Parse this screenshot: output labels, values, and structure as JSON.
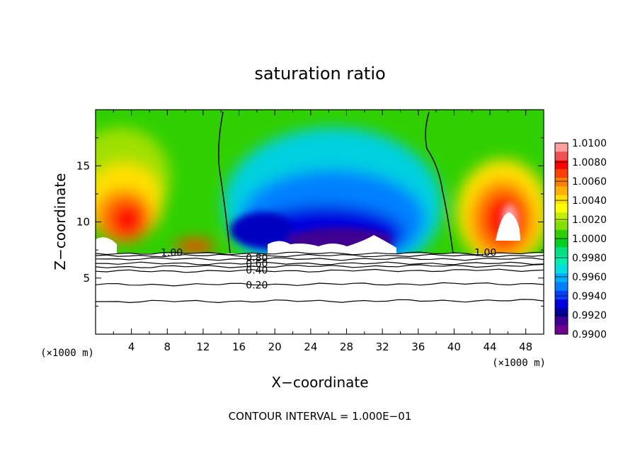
{
  "chart_data": {
    "type": "heatmap",
    "title": "saturation ratio",
    "xlabel": "X−coordinate",
    "ylabel": "Z−coordinate",
    "x_unit_label": "(×1000 m)",
    "z_unit_label": "(×1000 m)",
    "xlim": [
      0,
      50
    ],
    "ylim": [
      0,
      20
    ],
    "x_ticks": [
      "4",
      "8",
      "12",
      "16",
      "20",
      "24",
      "28",
      "32",
      "36",
      "40",
      "44",
      "48"
    ],
    "y_ticks": [
      "5",
      "10",
      "15"
    ],
    "footer": "CONTOUR INTERVAL = 1.000E−01",
    "colorbar": {
      "labels": [
        "1.0100",
        "1.0080",
        "1.0060",
        "1.0040",
        "1.0020",
        "1.0000",
        "0.9980",
        "0.9960",
        "0.9940",
        "0.9920",
        "0.9900"
      ],
      "colors": [
        "#ffa0a0",
        "#f05050",
        "#ff0000",
        "#ff4000",
        "#ff8000",
        "#ffb000",
        "#ffe000",
        "#ffff00",
        "#c0f000",
        "#80e000",
        "#30d000",
        "#00d020",
        "#00e080",
        "#00f0b0",
        "#00e0e0",
        "#00b0ff",
        "#0080ff",
        "#0040ff",
        "#0000e0",
        "#0000a0",
        "#400090",
        "#700090"
      ]
    },
    "contours": [
      {
        "label": "1.00",
        "z": [
          7.2,
          7.2
        ],
        "label_at": [
          [
            8.5,
            7.3
          ],
          [
            43.5,
            7.3
          ]
        ]
      },
      {
        "label": "0.80",
        "z": [
          6.7,
          6.7
        ],
        "label_at": [
          [
            18,
            6.8
          ]
        ]
      },
      {
        "label": "0.60",
        "z": [
          6.3,
          6.3
        ],
        "label_at": [
          [
            18,
            6.3
          ]
        ]
      },
      {
        "label": "0.40",
        "z": [
          5.6,
          5.7
        ],
        "label_at": [
          [
            18,
            5.7
          ]
        ]
      },
      {
        "label": "0.20",
        "z": [
          4.4,
          4.5
        ],
        "label_at": [
          [
            18,
            4.4
          ]
        ]
      },
      {
        "label": "",
        "z": [
          7.0,
          7.0
        ]
      },
      {
        "label": "",
        "z": [
          6.0,
          6.1
        ]
      },
      {
        "label": "",
        "z": [
          2.9,
          3.0
        ]
      }
    ]
  }
}
